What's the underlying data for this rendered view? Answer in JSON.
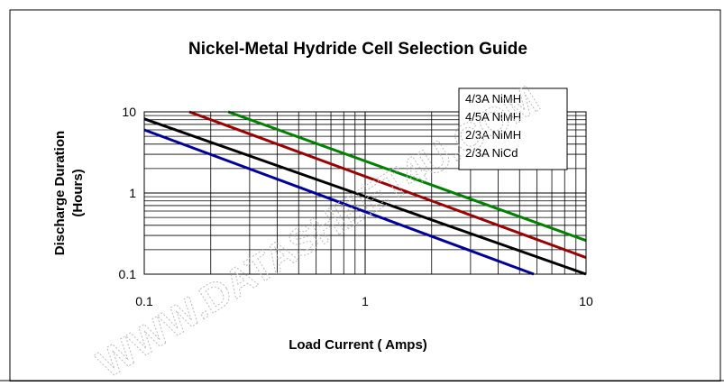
{
  "chart_data": {
    "type": "line",
    "title": "Nickel-Metal Hydride Cell Selection Guide",
    "xlabel": "Load Current ( Amps)",
    "ylabel_line1": "Discharge Duration",
    "ylabel_line2": "(Hours)",
    "x_scale": "log",
    "y_scale": "log",
    "xlim": [
      0.1,
      10
    ],
    "ylim": [
      0.1,
      10
    ],
    "x_ticks": [
      "0.1",
      "1",
      "10"
    ],
    "y_ticks": [
      "0.1",
      "1",
      "10"
    ],
    "grid": true,
    "legend_position": "top-right",
    "series": [
      {
        "name": "4/3A NiMH",
        "color": "#008000",
        "x": [
          0.24,
          10
        ],
        "y": [
          10,
          0.26
        ]
      },
      {
        "name": "4/5A NiMH",
        "color": "#990000",
        "x": [
          0.16,
          10
        ],
        "y": [
          10,
          0.16
        ]
      },
      {
        "name": "2/3A NiMH",
        "color": "#000000",
        "x": [
          0.1,
          10
        ],
        "y": [
          8.2,
          0.1
        ]
      },
      {
        "name": "2/3A NiCd",
        "color": "#000099",
        "x": [
          0.1,
          5.8
        ],
        "y": [
          6.0,
          0.1
        ]
      }
    ],
    "watermark": "WWW.DATASHEET4U.COM"
  }
}
